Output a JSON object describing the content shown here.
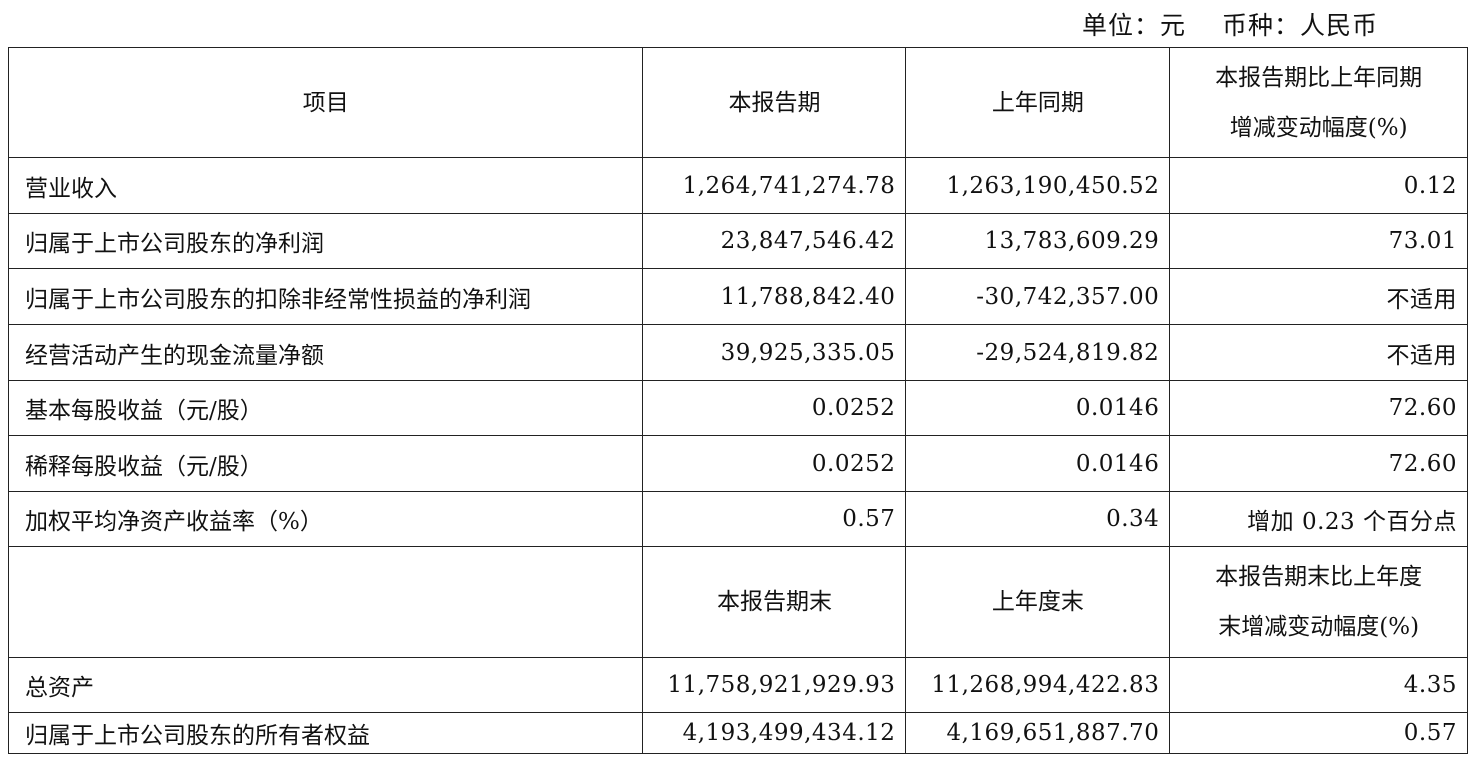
{
  "unit_line": {
    "unit": "单位：元",
    "currency": "币种：人民币"
  },
  "header1": [
    "项目",
    "本报告期",
    "上年同期",
    "本报告期比上年同期",
    "增减变动幅度(%)"
  ],
  "rows1": [
    [
      "营业收入",
      "1,264,741,274.78",
      "1,263,190,450.52",
      "0.12"
    ],
    [
      "归属于上市公司股东的净利润",
      "23,847,546.42",
      "13,783,609.29",
      "73.01"
    ],
    [
      "归属于上市公司股东的扣除非经常性损益的净利润",
      "11,788,842.40",
      "-30,742,357.00",
      "不适用"
    ],
    [
      "经营活动产生的现金流量净额",
      "39,925,335.05",
      "-29,524,819.82",
      "不适用"
    ],
    [
      "基本每股收益（元/股）",
      "0.0252",
      "0.0146",
      "72.60"
    ],
    [
      "稀释每股收益（元/股）",
      "0.0252",
      "0.0146",
      "72.60"
    ],
    [
      "加权平均净资产收益率（%）",
      "0.57",
      "0.34",
      "增加 0.23 个百分点"
    ]
  ],
  "header2": [
    "",
    "本报告期末",
    "上年度末",
    "本报告期末比上年度",
    "末增减变动幅度(%)"
  ],
  "rows2": [
    [
      "总资产",
      "11,758,921,929.93",
      "11,268,994,422.83",
      "4.35"
    ],
    [
      "归属于上市公司股东的所有者权益",
      "4,193,499,434.12",
      "4,169,651,887.70",
      "0.57"
    ]
  ]
}
